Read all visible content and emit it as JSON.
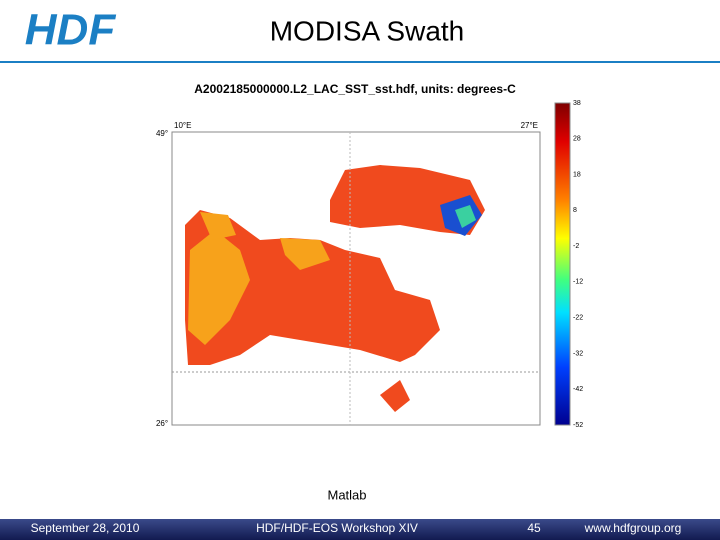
{
  "header": {
    "logo": "HDF",
    "title": "MODISA Swath"
  },
  "figure": {
    "title": "A2002185000000.L2_LAC_SST_sst.hdf, units: degrees-C",
    "map_labels": {
      "top_left_lat": "49°",
      "left_lon": "10°E",
      "right_lon": "27°E",
      "bottom_left_lat": "26°"
    },
    "colorbar_ticks": [
      "38",
      "28",
      "18",
      "8",
      "-2",
      "-12",
      "-22",
      "-32",
      "-42",
      "-52"
    ],
    "caption": "Matlab"
  },
  "footer": {
    "date": "September 28, 2010",
    "event": "HDF/HDF-EOS Workshop XIV",
    "page": "45",
    "url": "www.hdfgroup.org"
  }
}
